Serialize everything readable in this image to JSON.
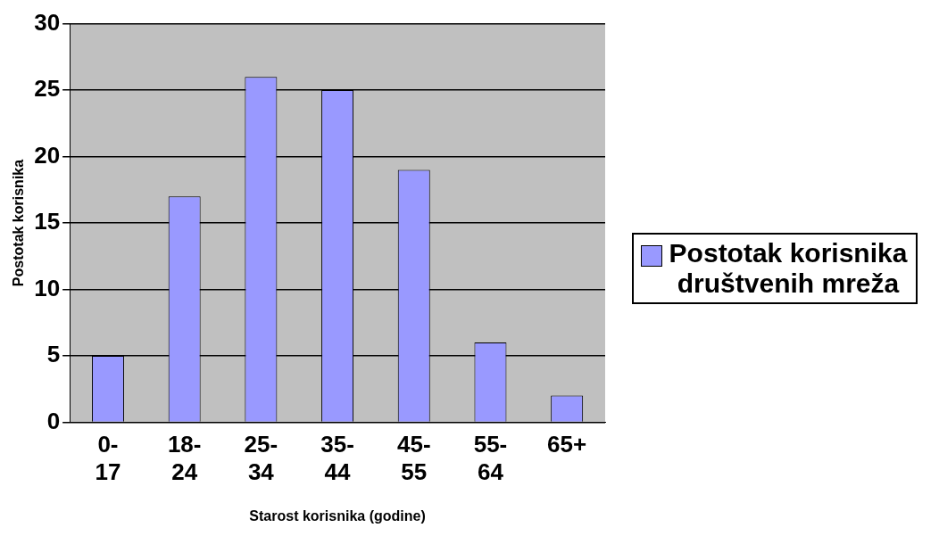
{
  "chart_data": {
    "type": "bar",
    "xlabel": "Starost korisnika (godine)",
    "ylabel": "Postotak korisnika",
    "categories": [
      "0-17",
      "18-24",
      "25-34",
      "35-44",
      "45-55",
      "55-64",
      "65+"
    ],
    "series": [
      {
        "name": "Postotak korisnika društvenih mreža",
        "color": "#9999ff",
        "values": [
          5,
          17,
          26,
          25,
          19,
          6,
          2
        ]
      }
    ],
    "ylim": [
      0,
      30
    ],
    "yticks": [
      0,
      5,
      10,
      15,
      20,
      25,
      30
    ],
    "grid": "y",
    "legend": "right"
  }
}
